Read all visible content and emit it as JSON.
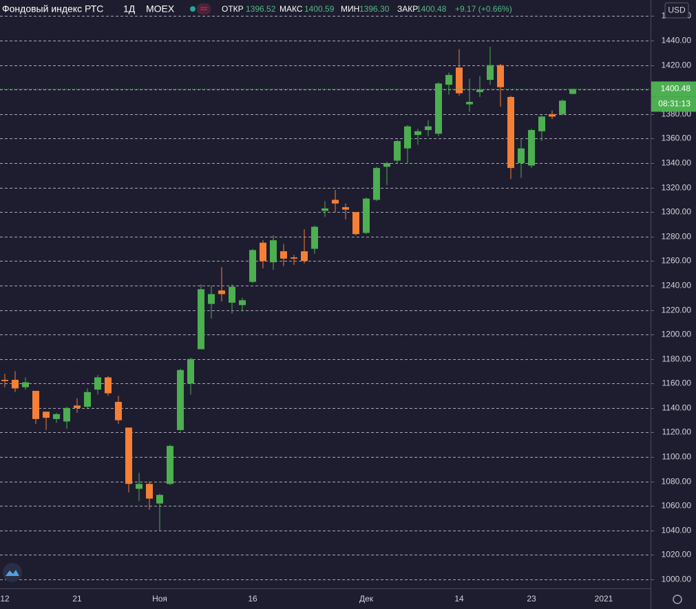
{
  "chart_data": {
    "type": "candlestick",
    "title": "Фондовый индекс РТС",
    "interval": "1Д",
    "exchange": "MOEX",
    "ohlc_legend": [
      {
        "label": "ОТКР",
        "value": "1396.52"
      },
      {
        "label": "МАКС",
        "value": "1400.59"
      },
      {
        "label": "МИН",
        "value": "1396.30"
      },
      {
        "label": "ЗАКР",
        "value": "1400.48"
      }
    ],
    "change": "+9.17 (+0.66%)",
    "currency": "USD",
    "last_price": 1400.48,
    "countdown": "08:31:13",
    "up_color": "#4caf50",
    "down_color": "#f57f35",
    "grid": true,
    "categories": [
      "12",
      null,
      null,
      null,
      null,
      null,
      null,
      "21",
      null,
      null,
      null,
      null,
      null,
      null,
      null,
      "Ноя",
      null,
      null,
      null,
      null,
      null,
      null,
      null,
      null,
      "16",
      null,
      null,
      null,
      null,
      null,
      null,
      null,
      null,
      null,
      null,
      "Дек",
      null,
      null,
      null,
      null,
      null,
      null,
      null,
      null,
      "14",
      null,
      null,
      null,
      null,
      null,
      null,
      "23",
      null,
      null,
      null,
      null,
      null,
      null,
      "2021"
    ],
    "open": [
      1163,
      1163,
      1157,
      1154,
      1137,
      1131,
      1129,
      1142,
      1141,
      1155,
      1165,
      1145,
      1124,
      1074,
      1078,
      1062,
      1078,
      1122,
      1160,
      1188,
      1225,
      1236,
      1226,
      1224,
      1243,
      1275,
      1259,
      1268,
      1263,
      1268,
      1270,
      1301,
      1310,
      1304,
      1300,
      1283,
      1310,
      1337,
      1342,
      1352,
      1363,
      1367,
      1364,
      1404,
      1418,
      1388,
      1398,
      1408,
      1420,
      1394,
      1340,
      1338,
      1366,
      1380,
      1380,
      1396.52,
      null,
      null,
      null
    ],
    "high": [
      1168,
      1170,
      1165,
      1154,
      1137,
      1136,
      1141,
      1148,
      1156,
      1167,
      1166,
      1150,
      1124,
      1087,
      1080,
      1070,
      1110,
      1172,
      1181,
      1241,
      1240,
      1255,
      1241,
      1230,
      1270,
      1277,
      1281,
      1274,
      1265,
      1286,
      1289,
      1309,
      1318,
      1307,
      1300,
      1312,
      1337,
      1341,
      1359,
      1371,
      1368,
      1375,
      1406,
      1414,
      1433,
      1409,
      1411,
      1435,
      1421,
      1395,
      1360,
      1368,
      1379,
      1383,
      1392,
      1400.59,
      null,
      null,
      null
    ],
    "low": [
      1157,
      1153,
      1155,
      1127,
      1122,
      1128,
      1123,
      1136,
      1140,
      1151,
      1150,
      1127,
      1071,
      1064,
      1057,
      1040,
      1077,
      1121,
      1151,
      1188,
      1213,
      1227,
      1217,
      1219,
      1242,
      1254,
      1253,
      1256,
      1257,
      1258,
      1266,
      1296,
      1300,
      1294,
      1281,
      1282,
      1309,
      1322,
      1340,
      1340,
      1355,
      1362,
      1362,
      1396,
      1395,
      1382,
      1394,
      1404,
      1386,
      1327,
      1328,
      1336,
      1358,
      1376,
      1379,
      1396.3,
      null,
      null,
      null
    ],
    "close": [
      1162,
      1156,
      1161,
      1131,
      1132,
      1135,
      1140,
      1140,
      1153,
      1165,
      1152,
      1130,
      1078,
      1078,
      1066,
      1069,
      1109,
      1171,
      1180,
      1237,
      1233,
      1233,
      1239,
      1228,
      1269,
      1260,
      1277,
      1262,
      1262,
      1260,
      1288,
      1303,
      1307,
      1302,
      1282,
      1311,
      1336,
      1340,
      1358,
      1370,
      1366,
      1370,
      1405,
      1412,
      1397,
      1390,
      1400,
      1420,
      1402,
      1336,
      1352,
      1367,
      1378,
      1378,
      1391,
      1400.48,
      null,
      null,
      null
    ],
    "ylim": [
      992.7,
      1473.2
    ],
    "yticks": [
      {
        "value": 1000,
        "label": "1000.00"
      },
      {
        "value": 1020,
        "label": "1020.00"
      },
      {
        "value": 1040,
        "label": "1040.00"
      },
      {
        "value": 1060,
        "label": "1060.00"
      },
      {
        "value": 1080,
        "label": "1080.00"
      },
      {
        "value": 1100,
        "label": "1100.00"
      },
      {
        "value": 1120,
        "label": "1120.00"
      },
      {
        "value": 1140,
        "label": "1140.00"
      },
      {
        "value": 1160,
        "label": "1160.00"
      },
      {
        "value": 1180,
        "label": "1180.00"
      },
      {
        "value": 1200,
        "label": "1200.00"
      },
      {
        "value": 1220,
        "label": "1220.00"
      },
      {
        "value": 1240,
        "label": "1240.00"
      },
      {
        "value": 1260,
        "label": "1260.00"
      },
      {
        "value": 1280,
        "label": "1280.00"
      },
      {
        "value": 1300,
        "label": "1300.00"
      },
      {
        "value": 1320,
        "label": "1320.00"
      },
      {
        "value": 1340,
        "label": "1340.00"
      },
      {
        "value": 1360,
        "label": "1360.00"
      },
      {
        "value": 1380,
        "label": "1380.00"
      },
      {
        "value": 1400,
        "label": "1400.00"
      },
      {
        "value": 1420,
        "label": "1420.00"
      },
      {
        "value": 1440,
        "label": "1440.00"
      },
      {
        "value": 1460,
        "label": "1460.00"
      }
    ]
  }
}
